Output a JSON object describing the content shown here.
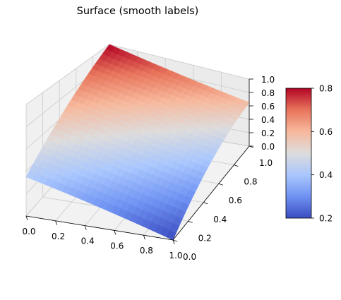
{
  "chart_data": {
    "type": "surface",
    "title": "Surface (smooth labels)",
    "colormap": "coolwarm",
    "colormap_stops": [
      "#3b4cc0",
      "#6f92f3",
      "#aac7fd",
      "#dddcdc",
      "#f7b89c",
      "#e7745b",
      "#b40426"
    ],
    "x": {
      "ticks": [
        0.0,
        0.2,
        0.4,
        0.6,
        0.8,
        1.0
      ],
      "tick_labels": [
        "0.0",
        "0.2",
        "0.4",
        "0.6",
        "0.8",
        "1.0"
      ],
      "range": [
        0,
        1
      ]
    },
    "y": {
      "ticks": [
        0.0,
        0.2,
        0.4,
        0.6,
        0.8,
        1.0
      ],
      "tick_labels": [
        "0.0",
        "0.2",
        "0.4",
        "0.6",
        "0.8",
        "1.0"
      ],
      "range": [
        0,
        1
      ]
    },
    "z": {
      "ticks": [
        0.0,
        0.2,
        0.4,
        0.6,
        0.8,
        1.0
      ],
      "tick_labels": [
        "0.0",
        "0.2",
        "0.4",
        "0.6",
        "0.8",
        "1.0"
      ],
      "range": [
        0,
        1
      ]
    },
    "surface_corners": [
      {
        "x": 0,
        "y": 0,
        "z": 0.35
      },
      {
        "x": 1,
        "y": 0,
        "z": 0.0
      },
      {
        "x": 0,
        "y": 1,
        "z": 1.0
      },
      {
        "x": 1,
        "y": 1,
        "z": 0.65
      }
    ],
    "colorbar": {
      "range": [
        0.2,
        0.8
      ],
      "ticks": [
        0.2,
        0.4,
        0.6,
        0.8
      ],
      "tick_labels": [
        "0.2",
        "0.4",
        "0.6",
        "0.8"
      ]
    },
    "grid": true
  }
}
